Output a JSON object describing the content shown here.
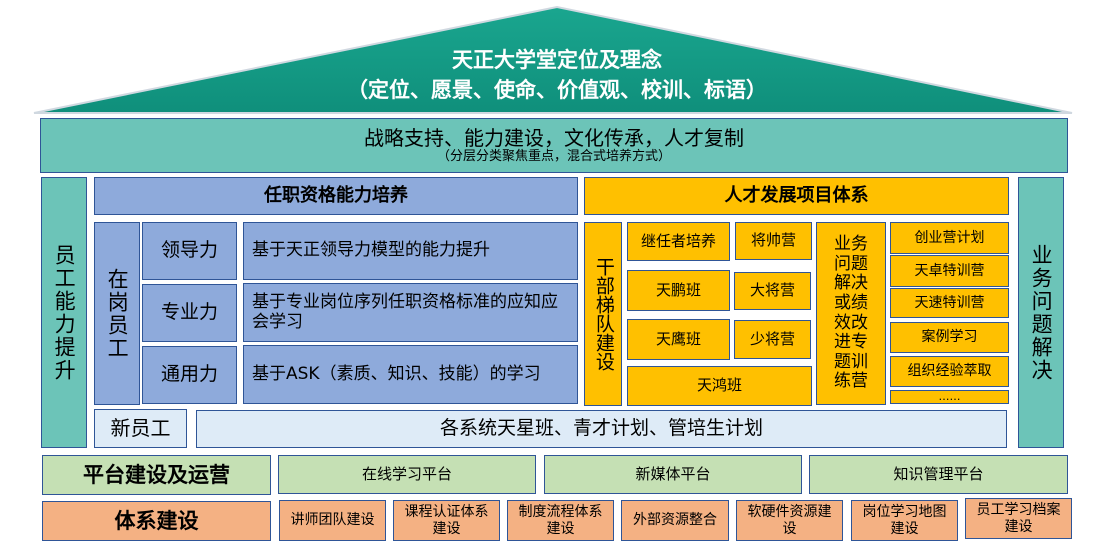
{
  "roof": {
    "title": "天正大学堂定位及理念",
    "subtitle": "（定位、愿景、使命、价值观、校训、标语）"
  },
  "band": {
    "title": "战略支持、能力建设，文化传承，人才复制",
    "subtitle": "（分层分类聚焦重点，混合式培养方式）"
  },
  "left_pillar": "员工能力提升",
  "right_pillar": "业务问题解决",
  "qualification": {
    "header": "任职资格能力培养",
    "group": "在岗员工",
    "rows": [
      {
        "label": "领导力",
        "desc": "基于天正领导力模型的能力提升"
      },
      {
        "label": "专业力",
        "desc": "基于专业岗位序列任职资格标准的应知应会学习"
      },
      {
        "label": "通用力",
        "desc": "基于ASK（素质、知识、技能）的学习"
      }
    ]
  },
  "new_staff": {
    "label": "新员工",
    "desc": "各系统天星班、青才计划、管培生计划"
  },
  "talent": {
    "header": "人才发展项目体系",
    "cadre": "干部梯队建设",
    "programs": [
      "继任者培养",
      "将帅营",
      "天鹏班",
      "大将营",
      "天鹰班",
      "少将营",
      "天鸿班"
    ],
    "business": "业务问题解决或绩效改进专题训练营",
    "list": [
      "创业营计划",
      "天卓特训营",
      "天速特训营",
      "案例学习",
      "组织经验萃取",
      "……"
    ]
  },
  "platform": {
    "label": "平台建设及运营",
    "items": [
      "在线学习平台",
      "新媒体平台",
      "知识管理平台"
    ]
  },
  "system": {
    "label": "体系建设",
    "items": [
      "讲师团队建设",
      "课程认证体系建设",
      "制度流程体系建设",
      "外部资源整合",
      "软硬件资源建设",
      "岗位学习地图建设",
      "员工学习档案建设"
    ]
  },
  "colors": {
    "roof": "#17a08a",
    "teal": "#6cc4b8",
    "blue": "#8eaadb",
    "gold": "#ffc000",
    "green": "#c5e0b4",
    "orange": "#f4b183",
    "border": "#2f5597"
  }
}
